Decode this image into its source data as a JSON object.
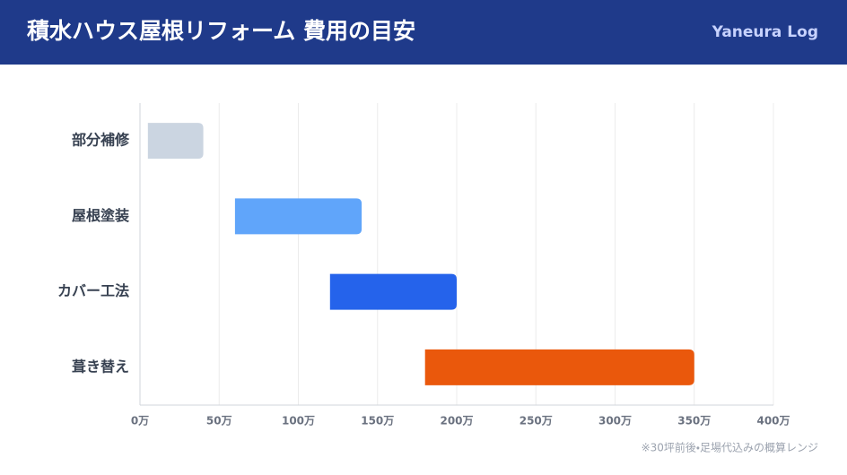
{
  "header": {
    "brand": "Yaneura Log"
  },
  "chart_data": {
    "type": "range_bar",
    "title": "積水ハウス屋根リフォーム 費用の目安",
    "categories": [
      "部分補修",
      "屋根塗装",
      "カバー工法",
      "葺き替え"
    ],
    "low": [
      5,
      60,
      120,
      180
    ],
    "high": [
      40,
      140,
      200,
      350
    ],
    "colors": [
      "#cbd5e1",
      "#60a5fa",
      "#2563eb",
      "#ea580c"
    ],
    "xlim": [
      0,
      400
    ],
    "xticks": [
      {
        "value": 0,
        "label": "0万"
      },
      {
        "value": 50,
        "label": "50万"
      },
      {
        "value": 100,
        "label": "100万"
      },
      {
        "value": 150,
        "label": "150万"
      },
      {
        "value": 200,
        "label": "200万"
      },
      {
        "value": 250,
        "label": "250万"
      },
      {
        "value": 300,
        "label": "300万"
      },
      {
        "value": 350,
        "label": "350万"
      },
      {
        "value": 400,
        "label": "400万"
      }
    ],
    "grid": true,
    "note": "※30坪前後・足場代込みの概算レンジ"
  }
}
